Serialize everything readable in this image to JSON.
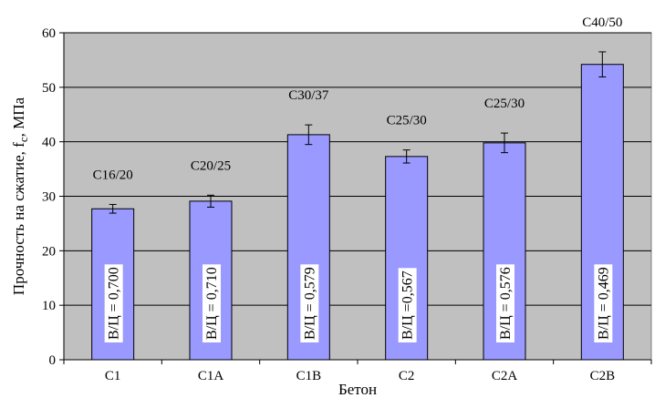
{
  "chart_data": {
    "type": "bar",
    "xlabel": "Бетон",
    "ylabel": "Прочность на сжатие, fc, МПа",
    "ylabel_parts": {
      "prefix": "Прочность на сжатие, f",
      "subscript": "c",
      "suffix": ", МПа"
    },
    "ylim": [
      0,
      60
    ],
    "yticks": [
      "0",
      "10",
      "20",
      "30",
      "40",
      "50",
      "60"
    ],
    "grid": true,
    "plot_background": "#c0c0c0",
    "bar_color": "#9999ff",
    "categories": [
      "C1",
      "C1A",
      "C1B",
      "C2",
      "C2A",
      "C2B"
    ],
    "values": [
      27.7,
      29.1,
      41.3,
      37.3,
      39.8,
      54.2
    ],
    "error": [
      0.8,
      1.1,
      1.8,
      1.2,
      1.8,
      2.3
    ],
    "class_labels": [
      "C16/20",
      "C20/25",
      "C30/37",
      "C25/30",
      "C25/30",
      "C40/50"
    ],
    "wc_labels": [
      "В/Ц = 0,700",
      "В/Ц = 0,710",
      "В/Ц = 0,579",
      "В/Ц =0,567",
      "В/Ц = 0,576",
      "В/Ц = 0,469"
    ]
  }
}
